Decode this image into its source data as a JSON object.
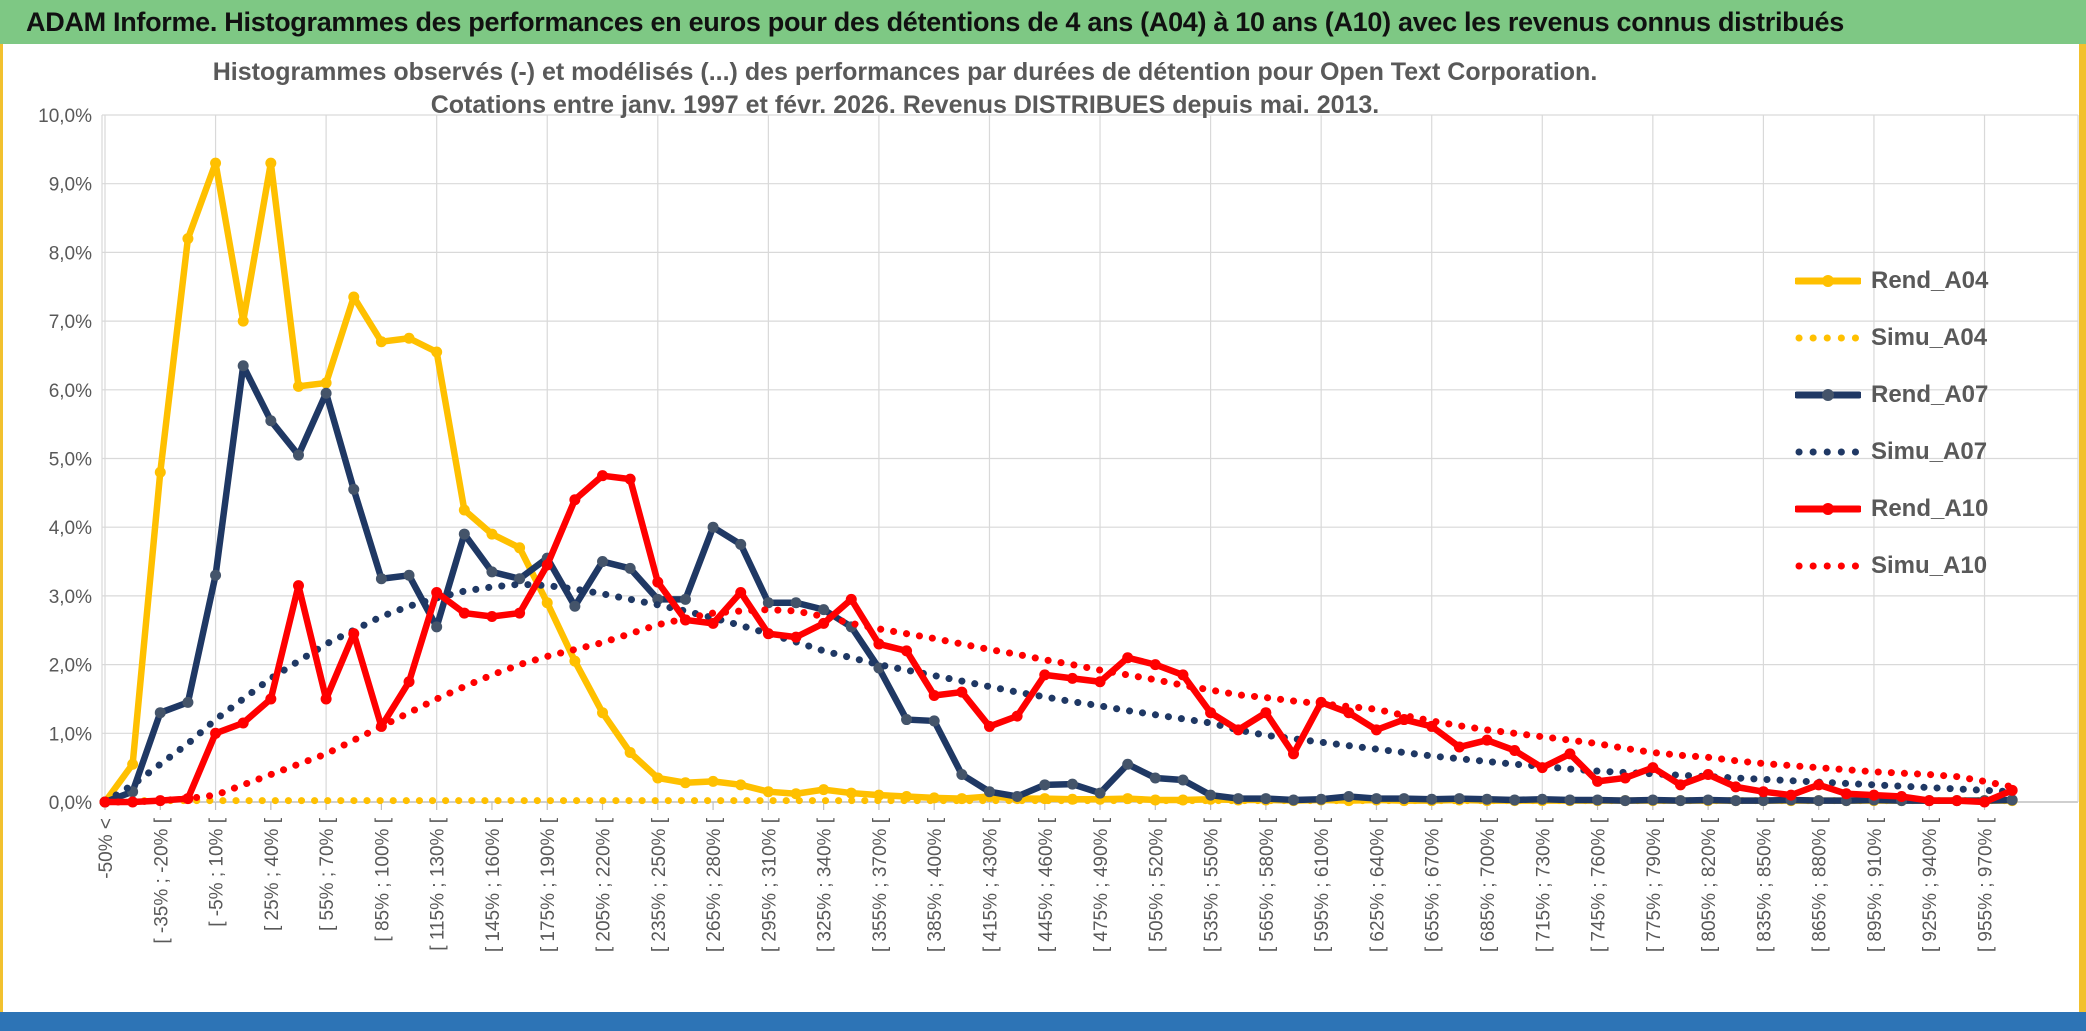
{
  "header": {
    "title": "ADAM Informe. Histogrammes des performances en euros pour des détentions de 4 ans (A04) à 10 ans (A10) avec les revenus connus distribués",
    "bg_color": "#7EC884",
    "accent_color": "#F2C12E",
    "bottom_bar_color": "#2D74B6"
  },
  "chart_data": {
    "type": "line",
    "title": "Histogrammes observés (-) et modélisés (...) des performances par durées de détention pour Open Text Corporation.",
    "subtitle": "Cotations entre janv. 1997 et févr. 2026. Revenus DISTRIBUES depuis mai. 2013.",
    "grid": true,
    "legend_position": "right",
    "ylim": [
      0,
      10
    ],
    "y_tick_labels": [
      "0,0%",
      "1,0%",
      "2,0%",
      "3,0%",
      "4,0%",
      "5,0%",
      "6,0%",
      "7,0%",
      "8,0%",
      "9,0%",
      "10,0%"
    ],
    "n_bins": 70,
    "x_tick_every": 2,
    "x_tick_labels": [
      "-50% <",
      "[ -35% ; -20% [",
      "[ -5% ; 10% [",
      "[ 25% ; 40% [",
      "[ 55% ; 70% [",
      "[ 85% ; 100% [",
      "[ 115% ; 130% [",
      "[ 145% ; 160% [",
      "[ 175% ; 190% [",
      "[ 205% ; 220% [",
      "[ 235% ; 250% [",
      "[ 265% ; 280% [",
      "[ 295% ; 310% [",
      "[ 325% ; 340% [",
      "[ 355% ; 370% [",
      "[ 385% ; 400% [",
      "[ 415% ; 430% [",
      "[ 445% ; 460% [",
      "[ 475% ; 490% [",
      "[ 505% ; 520% [",
      "[ 535% ; 550% [",
      "[ 565% ; 580% [",
      "[ 595% ; 610% [",
      "[ 625% ; 640% [",
      "[ 655% ; 670% [",
      "[ 685% ; 700% [",
      "[ 715% ; 730% [",
      "[ 745% ; 760% [",
      "[ 775% ; 790% [",
      "[ 805% ; 820% [",
      "[ 835% ; 850% [",
      "[ 865% ; 880% [",
      "[ 895% ; 910% [",
      "[ 925% ; 940% [",
      "[ 955% ; 970% ["
    ],
    "series": [
      {
        "name": "Rend_A04",
        "style": "solid",
        "color": "#FFC000",
        "marker_color": "#FFC000",
        "values": [
          0,
          0.55,
          4.8,
          8.2,
          9.3,
          7.0,
          9.3,
          6.05,
          6.1,
          7.35,
          6.7,
          6.75,
          6.55,
          4.25,
          3.9,
          3.7,
          2.9,
          2.05,
          1.3,
          0.72,
          0.35,
          0.28,
          0.3,
          0.25,
          0.15,
          0.12,
          0.18,
          0.13,
          0.1,
          0.08,
          0.06,
          0.05,
          0.08,
          0.05,
          0.05,
          0.04,
          0.04,
          0.05,
          0.03,
          0.03,
          0.04,
          0.03,
          0.03,
          0.02,
          0.03,
          0.02,
          0.03,
          0.02,
          0.02,
          0.03,
          0.02,
          0.02,
          0.02,
          0.02,
          0.02,
          0.02,
          0.02,
          0.02,
          0.02,
          0.02,
          0.02,
          0.02,
          0.02,
          0.02,
          0.02,
          0.02,
          0.02,
          0.02,
          0.02,
          0.02
        ]
      },
      {
        "name": "Simu_A04",
        "style": "dotted",
        "color": "#FFC000",
        "values": [
          0,
          0.02,
          0.02,
          0.02,
          0.02,
          0.02,
          0.02,
          0.02,
          0.02,
          0.02,
          0.02,
          0.02,
          0.02,
          0.02,
          0.02,
          0.02,
          0.02,
          0.02,
          0.02,
          0.02,
          0.02,
          0.02,
          0.02,
          0.02,
          0.02,
          0.02,
          0.02,
          0.02,
          0.02,
          0.02,
          0.02,
          0.02,
          0.02,
          0.02,
          0.02,
          0.02,
          0.02,
          0.02,
          0.02,
          0.02,
          0.02,
          0.02,
          0.02,
          0.02,
          0.02,
          0.02,
          0.02,
          0.02,
          0.02,
          0.02,
          0.02,
          0.02,
          0.02,
          0.02,
          0.02,
          0.02,
          0.02,
          0.02,
          0.02,
          0.02,
          0.02,
          0.02,
          0.02,
          0.02,
          0.02,
          0.02,
          0.02,
          0.02,
          0.02,
          0.02
        ]
      },
      {
        "name": "Rend_A07",
        "style": "solid",
        "color": "#1F3864",
        "marker_color": "#44546A",
        "values": [
          0,
          0.15,
          1.3,
          1.45,
          3.3,
          6.35,
          5.55,
          5.05,
          5.95,
          4.55,
          3.25,
          3.3,
          2.55,
          3.9,
          3.35,
          3.25,
          3.55,
          2.85,
          3.5,
          3.4,
          2.95,
          2.95,
          4.0,
          3.75,
          2.9,
          2.9,
          2.8,
          2.55,
          1.95,
          1.2,
          1.18,
          0.4,
          0.15,
          0.08,
          0.25,
          0.26,
          0.13,
          0.55,
          0.35,
          0.32,
          0.1,
          0.05,
          0.05,
          0.03,
          0.04,
          0.08,
          0.05,
          0.05,
          0.04,
          0.05,
          0.04,
          0.03,
          0.04,
          0.03,
          0.03,
          0.02,
          0.03,
          0.02,
          0.03,
          0.02,
          0.02,
          0.03,
          0.02,
          0.02,
          0.03,
          0.02,
          0.02,
          0.02,
          0.02,
          0.03
        ]
      },
      {
        "name": "Simu_A07",
        "style": "dotted",
        "color": "#1F3864",
        "values": [
          0,
          0.25,
          0.55,
          0.85,
          1.2,
          1.5,
          1.8,
          2.05,
          2.3,
          2.5,
          2.7,
          2.85,
          2.97,
          3.07,
          3.13,
          3.17,
          3.15,
          3.1,
          3.03,
          2.95,
          2.87,
          2.78,
          2.68,
          2.57,
          2.45,
          2.33,
          2.2,
          2.1,
          2.0,
          1.92,
          1.84,
          1.76,
          1.68,
          1.6,
          1.53,
          1.46,
          1.4,
          1.33,
          1.27,
          1.21,
          1.15,
          1.05,
          0.97,
          0.92,
          0.87,
          0.82,
          0.77,
          0.72,
          0.67,
          0.63,
          0.59,
          0.55,
          0.52,
          0.48,
          0.45,
          0.43,
          0.41,
          0.39,
          0.37,
          0.35,
          0.33,
          0.31,
          0.29,
          0.27,
          0.25,
          0.23,
          0.21,
          0.19,
          0.17,
          0.15
        ]
      },
      {
        "name": "Rend_A10",
        "style": "solid",
        "color": "#FF0000",
        "marker_color": "#FF0000",
        "values": [
          0,
          0,
          0.02,
          0.05,
          1.0,
          1.15,
          1.5,
          3.15,
          1.5,
          2.45,
          1.1,
          1.75,
          3.05,
          2.75,
          2.7,
          2.75,
          3.45,
          4.4,
          4.75,
          4.7,
          3.2,
          2.65,
          2.6,
          3.05,
          2.45,
          2.4,
          2.6,
          2.95,
          2.3,
          2.2,
          1.55,
          1.6,
          1.1,
          1.25,
          1.85,
          1.8,
          1.75,
          2.1,
          2.0,
          1.85,
          1.3,
          1.05,
          1.3,
          0.7,
          1.45,
          1.3,
          1.05,
          1.2,
          1.1,
          0.8,
          0.9,
          0.75,
          0.5,
          0.7,
          0.3,
          0.35,
          0.5,
          0.25,
          0.4,
          0.22,
          0.15,
          0.1,
          0.25,
          0.12,
          0.1,
          0.08,
          0.02,
          0.02,
          0.0,
          0.17
        ]
      },
      {
        "name": "Simu_A10",
        "style": "dotted",
        "color": "#FF0000",
        "values": [
          0,
          0,
          0.02,
          0.05,
          0.1,
          0.25,
          0.4,
          0.55,
          0.7,
          0.9,
          1.1,
          1.3,
          1.5,
          1.68,
          1.85,
          2.0,
          2.12,
          2.22,
          2.32,
          2.45,
          2.58,
          2.67,
          2.75,
          2.78,
          2.8,
          2.78,
          2.7,
          2.6,
          2.52,
          2.45,
          2.38,
          2.3,
          2.22,
          2.15,
          2.07,
          2.0,
          1.92,
          1.85,
          1.78,
          1.7,
          1.63,
          1.56,
          1.52,
          1.47,
          1.43,
          1.39,
          1.35,
          1.26,
          1.18,
          1.11,
          1.05,
          1.0,
          0.95,
          0.9,
          0.85,
          0.78,
          0.72,
          0.68,
          0.65,
          0.6,
          0.56,
          0.53,
          0.5,
          0.47,
          0.44,
          0.42,
          0.4,
          0.37,
          0.3,
          0.22
        ]
      }
    ],
    "text_color": "#595959",
    "gridline_color": "#D9D9D9",
    "axis_color": "#BFBFBF"
  }
}
